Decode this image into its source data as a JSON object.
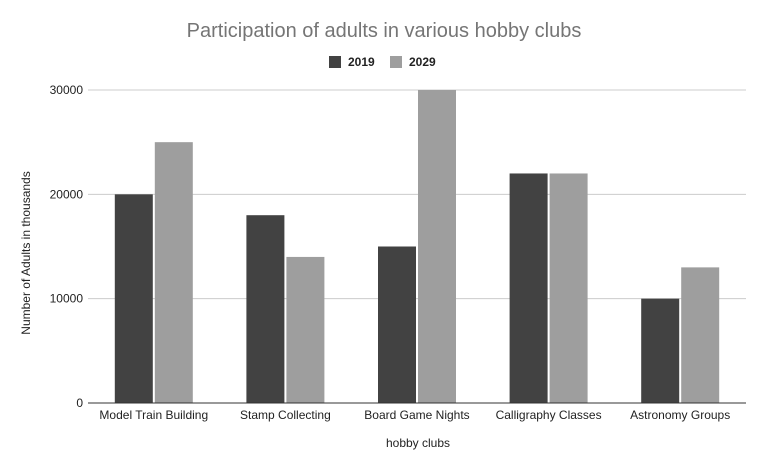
{
  "chart_data": {
    "type": "bar",
    "title": "Participation of adults in various hobby clubs",
    "xlabel": "hobby clubs",
    "ylabel": "Number of Adults in thousands",
    "categories": [
      "Model Train Building",
      "Stamp Collecting",
      "Board Game Nights",
      "Calligraphy Classes",
      "Astronomy Groups"
    ],
    "series": [
      {
        "name": "2019",
        "color": "#424242",
        "values": [
          20000,
          18000,
          15000,
          22000,
          10000
        ]
      },
      {
        "name": "2029",
        "color": "#9e9e9e",
        "values": [
          25000,
          14000,
          30000,
          22000,
          13000
        ]
      }
    ],
    "ylim": [
      0,
      30000
    ],
    "yticks": [
      "0",
      "10000",
      "20000",
      "30000"
    ],
    "grid": true,
    "legend_position": "top-center"
  }
}
